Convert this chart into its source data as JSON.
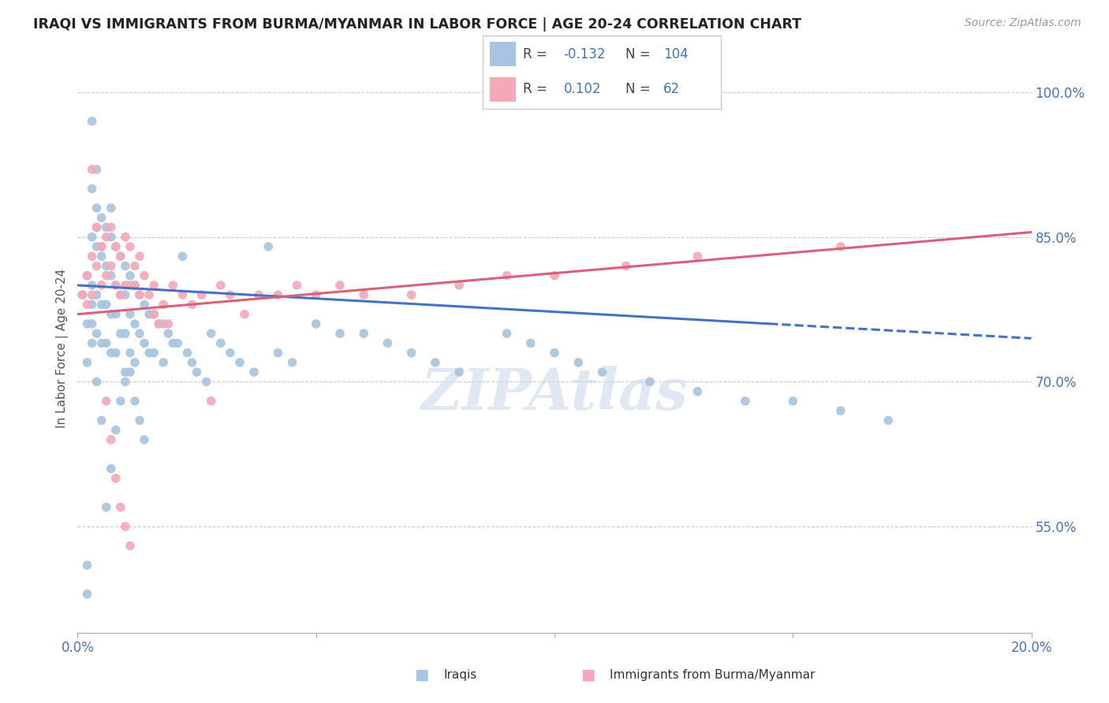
{
  "title": "IRAQI VS IMMIGRANTS FROM BURMA/MYANMAR IN LABOR FORCE | AGE 20-24 CORRELATION CHART",
  "source": "Source: ZipAtlas.com",
  "ylabel": "In Labor Force | Age 20-24",
  "yaxis_labels": [
    "100.0%",
    "85.0%",
    "70.0%",
    "55.0%"
  ],
  "yaxis_values": [
    1.0,
    0.85,
    0.7,
    0.55
  ],
  "xmin": 0.0,
  "xmax": 0.2,
  "ymin": 0.44,
  "ymax": 1.03,
  "color_iraqis": "#a8c4e0",
  "color_burma": "#f4a8b8",
  "color_iraqis_line": "#4472c4",
  "color_burma_line": "#d9607a",
  "color_text_blue": "#4472c4",
  "watermark": "ZIPAtlas",
  "iraqis_x": [
    0.001,
    0.002,
    0.002,
    0.002,
    0.003,
    0.003,
    0.003,
    0.003,
    0.003,
    0.004,
    0.004,
    0.004,
    0.004,
    0.004,
    0.005,
    0.005,
    0.005,
    0.005,
    0.006,
    0.006,
    0.006,
    0.006,
    0.007,
    0.007,
    0.007,
    0.007,
    0.007,
    0.008,
    0.008,
    0.008,
    0.008,
    0.009,
    0.009,
    0.009,
    0.01,
    0.01,
    0.01,
    0.01,
    0.011,
    0.011,
    0.011,
    0.012,
    0.012,
    0.012,
    0.013,
    0.013,
    0.014,
    0.014,
    0.015,
    0.015,
    0.016,
    0.016,
    0.017,
    0.018,
    0.018,
    0.019,
    0.02,
    0.021,
    0.022,
    0.023,
    0.024,
    0.025,
    0.027,
    0.028,
    0.03,
    0.032,
    0.034,
    0.037,
    0.04,
    0.042,
    0.045,
    0.05,
    0.055,
    0.06,
    0.065,
    0.07,
    0.075,
    0.08,
    0.09,
    0.095,
    0.1,
    0.105,
    0.11,
    0.12,
    0.13,
    0.14,
    0.15,
    0.16,
    0.17,
    0.003,
    0.003,
    0.004,
    0.005,
    0.002,
    0.002,
    0.006,
    0.007,
    0.008,
    0.009,
    0.01,
    0.011,
    0.012,
    0.013,
    0.014
  ],
  "iraqis_y": [
    0.79,
    0.81,
    0.76,
    0.72,
    0.97,
    0.9,
    0.85,
    0.8,
    0.76,
    0.92,
    0.88,
    0.84,
    0.79,
    0.75,
    0.87,
    0.83,
    0.78,
    0.74,
    0.86,
    0.82,
    0.78,
    0.74,
    0.88,
    0.85,
    0.81,
    0.77,
    0.73,
    0.84,
    0.8,
    0.77,
    0.73,
    0.83,
    0.79,
    0.75,
    0.82,
    0.79,
    0.75,
    0.71,
    0.81,
    0.77,
    0.73,
    0.8,
    0.76,
    0.72,
    0.79,
    0.75,
    0.78,
    0.74,
    0.77,
    0.73,
    0.77,
    0.73,
    0.76,
    0.76,
    0.72,
    0.75,
    0.74,
    0.74,
    0.83,
    0.73,
    0.72,
    0.71,
    0.7,
    0.75,
    0.74,
    0.73,
    0.72,
    0.71,
    0.84,
    0.73,
    0.72,
    0.76,
    0.75,
    0.75,
    0.74,
    0.73,
    0.72,
    0.71,
    0.75,
    0.74,
    0.73,
    0.72,
    0.71,
    0.7,
    0.69,
    0.68,
    0.68,
    0.67,
    0.66,
    0.78,
    0.74,
    0.7,
    0.66,
    0.51,
    0.48,
    0.57,
    0.61,
    0.65,
    0.68,
    0.7,
    0.71,
    0.68,
    0.66,
    0.64
  ],
  "burma_x": [
    0.001,
    0.002,
    0.002,
    0.003,
    0.003,
    0.004,
    0.004,
    0.005,
    0.005,
    0.006,
    0.006,
    0.007,
    0.007,
    0.008,
    0.008,
    0.009,
    0.009,
    0.01,
    0.01,
    0.011,
    0.011,
    0.012,
    0.012,
    0.013,
    0.013,
    0.014,
    0.015,
    0.016,
    0.016,
    0.017,
    0.018,
    0.019,
    0.02,
    0.022,
    0.024,
    0.026,
    0.028,
    0.03,
    0.032,
    0.035,
    0.038,
    0.042,
    0.046,
    0.05,
    0.055,
    0.06,
    0.07,
    0.08,
    0.09,
    0.1,
    0.115,
    0.13,
    0.16,
    0.003,
    0.004,
    0.005,
    0.006,
    0.007,
    0.008,
    0.009,
    0.01,
    0.011
  ],
  "burma_y": [
    0.79,
    0.81,
    0.78,
    0.83,
    0.79,
    0.86,
    0.82,
    0.84,
    0.8,
    0.85,
    0.81,
    0.86,
    0.82,
    0.84,
    0.8,
    0.83,
    0.79,
    0.85,
    0.8,
    0.84,
    0.8,
    0.8,
    0.82,
    0.79,
    0.83,
    0.81,
    0.79,
    0.8,
    0.77,
    0.76,
    0.78,
    0.76,
    0.8,
    0.79,
    0.78,
    0.79,
    0.68,
    0.8,
    0.79,
    0.77,
    0.79,
    0.79,
    0.8,
    0.79,
    0.8,
    0.79,
    0.79,
    0.8,
    0.81,
    0.81,
    0.82,
    0.83,
    0.84,
    0.92,
    0.86,
    0.84,
    0.68,
    0.64,
    0.6,
    0.57,
    0.55,
    0.53
  ],
  "line_iraqis_x0": 0.0,
  "line_iraqis_x1": 0.2,
  "line_iraqis_y0": 0.8,
  "line_iraqis_y1": 0.745,
  "line_iraqis_solid_end": 0.145,
  "line_burma_x0": 0.0,
  "line_burma_x1": 0.2,
  "line_burma_y0": 0.77,
  "line_burma_y1": 0.855
}
